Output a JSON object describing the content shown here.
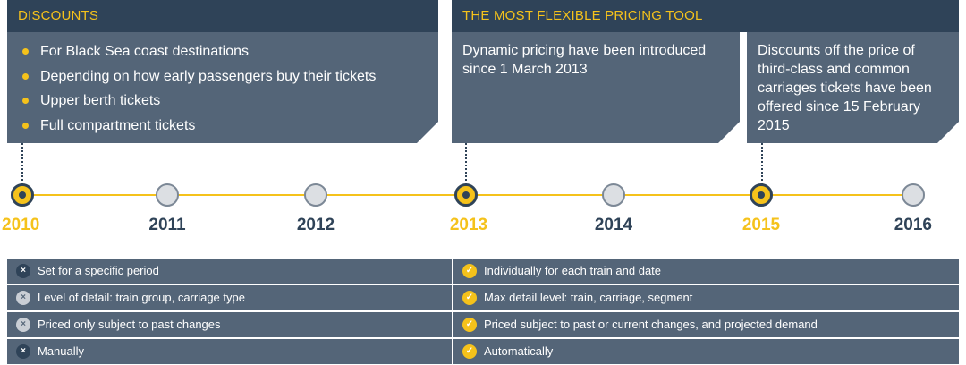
{
  "sections": {
    "left": {
      "title": "DISCOUNTS",
      "bullets": [
        "For Black Sea coast destinations",
        "Depending on how early passengers buy their tickets",
        "Upper berth tickets",
        "Full compartment tickets"
      ]
    },
    "right": {
      "title": "THE MOST FLEXIBLE PRICING TOOL",
      "box1": "Dynamic pricing have been introduced since 1 March 2013",
      "box2": "Discounts off the price of third-class and common carriages tickets have been offered since 15 February 2015"
    }
  },
  "timeline": {
    "years": [
      {
        "label": "2010",
        "active": true
      },
      {
        "label": "2011",
        "active": false
      },
      {
        "label": "2012",
        "active": false
      },
      {
        "label": "2013",
        "active": true
      },
      {
        "label": "2014",
        "active": false
      },
      {
        "label": "2015",
        "active": true
      },
      {
        "label": "2016",
        "active": false
      }
    ]
  },
  "comparison": {
    "rows": [
      {
        "left": "Set for a specific period",
        "right": "Individually for each train and date"
      },
      {
        "left": "Level of detail: train group, carriage type",
        "right": "Max detail level: train, carriage, segment"
      },
      {
        "left": "Priced only subject to past changes",
        "right": "Priced subject to past or current changes, and projected demand"
      },
      {
        "left": "Manually",
        "right": "Automatically"
      }
    ]
  },
  "icons": {
    "cross": "×",
    "check": "✓"
  },
  "colors": {
    "header_bg": "#2f4358",
    "panel_bg": "#546578",
    "accent": "#f5c21b",
    "node_inactive": "#dcdfe3"
  }
}
